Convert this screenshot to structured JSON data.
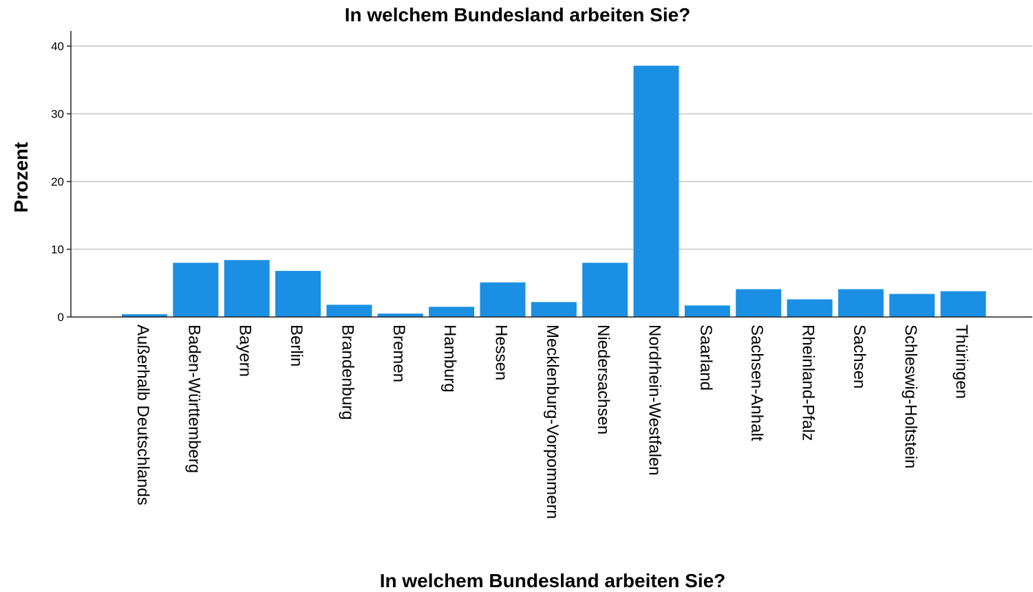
{
  "chart_data": {
    "type": "bar",
    "title": "In welchem Bundesland arbeiten Sie?",
    "xlabel": "In welchem Bundesland arbeiten Sie?",
    "ylabel": "Prozent",
    "ylim": [
      0,
      42
    ],
    "yticks": [
      0,
      10,
      20,
      30,
      40
    ],
    "grid": true,
    "bar_color": "#1a8fe3",
    "categories": [
      "Außerhalb Deutschlands",
      "Baden-Württemberg",
      "Bayern",
      "Berlin",
      "Brandenburg",
      "Bremen",
      "Hamburg",
      "Hessen",
      "Mecklenburg-Vorpommern",
      "Niedersachsen",
      "Nordrhein-Westfalen",
      "Saarland",
      "Sachsen-Anhalt",
      "Rheinland-Pfalz",
      "Sachsen",
      "Schleswig-Holtstein",
      "Thüringen"
    ],
    "values": [
      0.4,
      8.0,
      8.4,
      6.8,
      1.8,
      0.5,
      1.5,
      5.1,
      2.2,
      8.0,
      37.1,
      1.7,
      4.1,
      2.6,
      4.1,
      3.4,
      3.8
    ]
  }
}
